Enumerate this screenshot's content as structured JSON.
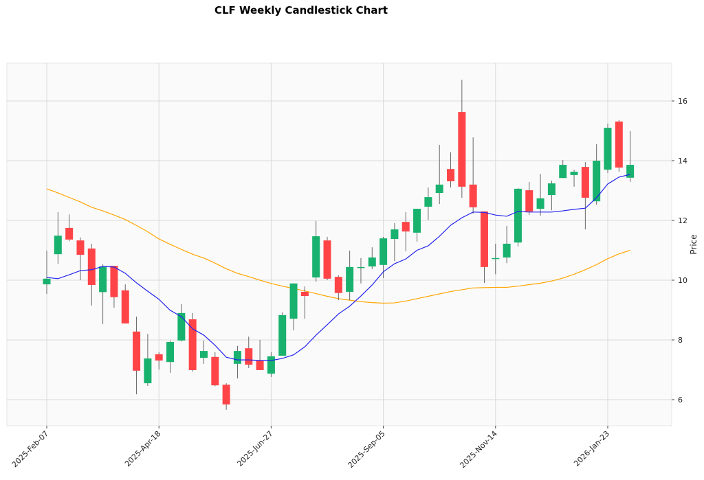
{
  "chart_data": {
    "type": "candlestick",
    "title": "CLF Weekly Candlestick Chart",
    "xlabel": "",
    "ylabel": "Price",
    "ylim": [
      5.1,
      17.2
    ],
    "yticks": [
      6,
      8,
      10,
      12,
      14,
      16
    ],
    "xtick_labels": [
      "2025-Feb-07",
      "2025-Apr-18",
      "2025-Jun-27",
      "2025-Sep-05",
      "2025-Nov-14",
      "2026-Jan-23"
    ],
    "grid": true,
    "colors": {
      "up": "#18b26e",
      "down": "#ff4448",
      "wick": "#666666",
      "ma_short": "#2222ee",
      "ma_long": "#ffa500",
      "background": "#fafafa",
      "grid": "#d9d9d9"
    },
    "dates": [
      "2025-02-07",
      "2025-02-14",
      "2025-02-21",
      "2025-02-28",
      "2025-03-07",
      "2025-03-14",
      "2025-03-21",
      "2025-03-28",
      "2025-04-04",
      "2025-04-11",
      "2025-04-18",
      "2025-04-25",
      "2025-05-02",
      "2025-05-09",
      "2025-05-16",
      "2025-05-23",
      "2025-05-30",
      "2025-06-06",
      "2025-06-13",
      "2025-06-20",
      "2025-06-27",
      "2025-07-04",
      "2025-07-11",
      "2025-07-18",
      "2025-07-25",
      "2025-08-01",
      "2025-08-08",
      "2025-08-15",
      "2025-08-22",
      "2025-08-29",
      "2025-09-05",
      "2025-09-12",
      "2025-09-19",
      "2025-09-26",
      "2025-10-03",
      "2025-10-10",
      "2025-10-17",
      "2025-10-24",
      "2025-10-31",
      "2025-11-07",
      "2025-11-14",
      "2025-11-21",
      "2025-11-28",
      "2025-12-05",
      "2025-12-12",
      "2025-12-19",
      "2025-12-26",
      "2026-01-02",
      "2026-01-09",
      "2026-01-16",
      "2026-01-23",
      "2026-01-30",
      "2026-02-06"
    ],
    "ohlc": [
      [
        9.86,
        10.99,
        9.54,
        10.05
      ],
      [
        10.87,
        12.28,
        10.55,
        11.49
      ],
      [
        11.75,
        12.2,
        11.3,
        11.36
      ],
      [
        11.33,
        11.43,
        10.0,
        10.85
      ],
      [
        11.06,
        11.22,
        9.15,
        9.84
      ],
      [
        9.6,
        10.53,
        8.53,
        10.46
      ],
      [
        10.48,
        10.48,
        9.08,
        9.43
      ],
      [
        9.66,
        9.86,
        8.55,
        8.55
      ],
      [
        8.28,
        8.78,
        6.18,
        6.97
      ],
      [
        6.55,
        8.2,
        6.46,
        7.38
      ],
      [
        7.52,
        7.59,
        7.01,
        7.31
      ],
      [
        7.26,
        7.98,
        6.9,
        7.93
      ],
      [
        7.98,
        9.2,
        7.95,
        8.9
      ],
      [
        8.69,
        8.9,
        6.94,
        6.99
      ],
      [
        7.4,
        7.98,
        7.2,
        7.63
      ],
      [
        7.43,
        7.59,
        6.45,
        6.48
      ],
      [
        6.5,
        6.55,
        5.66,
        5.84
      ],
      [
        7.2,
        7.8,
        6.71,
        7.63
      ],
      [
        7.72,
        8.11,
        7.06,
        7.17
      ],
      [
        7.31,
        8.0,
        6.99,
        6.99
      ],
      [
        6.87,
        7.59,
        6.76,
        7.45
      ],
      [
        7.47,
        8.92,
        7.47,
        8.83
      ],
      [
        8.71,
        9.89,
        8.32,
        9.89
      ],
      [
        9.61,
        9.79,
        8.71,
        9.47
      ],
      [
        10.09,
        11.98,
        9.95,
        11.47
      ],
      [
        11.33,
        11.45,
        10.0,
        10.05
      ],
      [
        10.11,
        10.16,
        9.33,
        9.57
      ],
      [
        9.61,
        10.99,
        9.33,
        10.44
      ],
      [
        10.41,
        10.74,
        9.89,
        10.44
      ],
      [
        10.46,
        11.1,
        10.37,
        10.76
      ],
      [
        10.51,
        11.45,
        10.07,
        11.4
      ],
      [
        11.38,
        11.91,
        10.64,
        11.7
      ],
      [
        11.95,
        12.28,
        10.97,
        11.63
      ],
      [
        11.59,
        12.39,
        11.29,
        12.39
      ],
      [
        12.46,
        13.1,
        12.02,
        12.78
      ],
      [
        12.92,
        14.53,
        12.55,
        13.2
      ],
      [
        13.72,
        14.28,
        13.1,
        13.31
      ],
      [
        15.63,
        16.71,
        12.76,
        13.13
      ],
      [
        13.2,
        14.78,
        12.23,
        12.44
      ],
      [
        12.3,
        12.3,
        9.91,
        10.44
      ],
      [
        10.72,
        11.22,
        10.2,
        10.74
      ],
      [
        10.76,
        11.82,
        10.57,
        11.22
      ],
      [
        11.26,
        13.08,
        11.13,
        13.06
      ],
      [
        13.01,
        13.29,
        12.18,
        12.3
      ],
      [
        12.39,
        13.56,
        12.16,
        12.74
      ],
      [
        12.85,
        13.33,
        12.34,
        13.24
      ],
      [
        13.42,
        14.02,
        13.42,
        13.86
      ],
      [
        13.52,
        13.7,
        13.13,
        13.63
      ],
      [
        13.79,
        13.95,
        11.7,
        12.76
      ],
      [
        12.64,
        14.55,
        12.53,
        14.0
      ],
      [
        13.7,
        15.24,
        13.59,
        15.1
      ],
      [
        15.31,
        15.36,
        13.63,
        13.77
      ],
      [
        13.43,
        14.99,
        13.29,
        13.86
      ]
    ],
    "ma_short": [
      10.09,
      10.05,
      10.18,
      10.32,
      10.35,
      10.46,
      10.44,
      10.23,
      9.91,
      9.63,
      9.36,
      8.99,
      8.78,
      8.37,
      8.16,
      7.82,
      7.42,
      7.33,
      7.33,
      7.31,
      7.31,
      7.38,
      7.5,
      7.77,
      8.16,
      8.51,
      8.87,
      9.13,
      9.47,
      9.84,
      10.28,
      10.55,
      10.71,
      11.0,
      11.15,
      11.47,
      11.84,
      12.09,
      12.28,
      12.27,
      12.18,
      12.14,
      12.3,
      12.28,
      12.28,
      12.28,
      12.32,
      12.37,
      12.41,
      12.76,
      13.22,
      13.45,
      13.54
    ],
    "ma_long": [
      13.06,
      12.92,
      12.77,
      12.62,
      12.44,
      12.32,
      12.18,
      12.03,
      11.83,
      11.62,
      11.38,
      11.2,
      11.03,
      10.87,
      10.74,
      10.57,
      10.38,
      10.23,
      10.12,
      10.0,
      9.89,
      9.8,
      9.72,
      9.64,
      9.55,
      9.46,
      9.38,
      9.33,
      9.28,
      9.25,
      9.23,
      9.24,
      9.3,
      9.38,
      9.46,
      9.54,
      9.62,
      9.68,
      9.74,
      9.75,
      9.76,
      9.76,
      9.8,
      9.85,
      9.9,
      9.97,
      10.07,
      10.2,
      10.35,
      10.52,
      10.72,
      10.88,
      11.0
    ]
  }
}
